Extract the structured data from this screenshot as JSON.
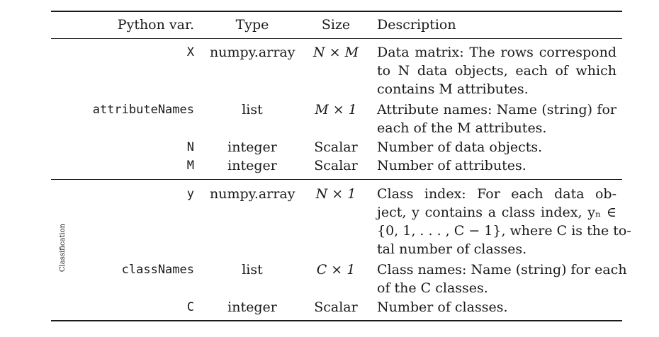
{
  "header": {
    "python_var": "Python var.",
    "type": "Type",
    "size": "Size",
    "description": "Description"
  },
  "section1": {
    "rows": [
      {
        "var": "X",
        "type": "numpy.array",
        "size": "N × M",
        "description_lines": [
          "Data matrix: The rows correspond",
          "to N data objects, each of which",
          "contains M attributes."
        ]
      },
      {
        "var": "attributeNames",
        "type": "list",
        "size": "M × 1",
        "description_lines": [
          "Attribute names: Name (string) for",
          "each of the M attributes."
        ]
      },
      {
        "var": "N",
        "type": "integer",
        "size": "Scalar",
        "description_lines": [
          "Number of data objects."
        ]
      },
      {
        "var": "M",
        "type": "integer",
        "size": "Scalar",
        "description_lines": [
          "Number of attributes."
        ]
      }
    ]
  },
  "section2": {
    "group_label": "Classification",
    "rows": [
      {
        "var": "y",
        "type": "numpy.array",
        "size": "N × 1",
        "description_lines": [
          "Class index: For each data ob-",
          "ject, y contains a class index, yₙ ∈",
          "{0, 1, . . . , C − 1}, where C is the to-",
          "tal number of classes."
        ]
      },
      {
        "var": "classNames",
        "type": "list",
        "size": "C × 1",
        "description_lines": [
          "Class names: Name (string) for each",
          "of the C classes."
        ]
      },
      {
        "var": "C",
        "type": "integer",
        "size": "Scalar",
        "description_lines": [
          "Number of classes."
        ]
      }
    ]
  }
}
